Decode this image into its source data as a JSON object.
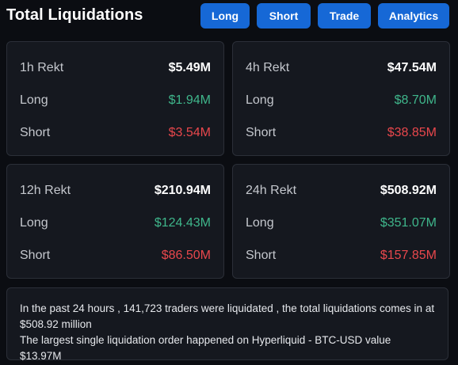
{
  "header": {
    "title": "Total Liquidations",
    "tabs": [
      "Long",
      "Short",
      "Trade",
      "Analytics"
    ]
  },
  "cards": [
    {
      "period": "1h Rekt",
      "total": "$5.49M",
      "long_label": "Long",
      "long": "$1.94M",
      "short_label": "Short",
      "short": "$3.54M"
    },
    {
      "period": "4h Rekt",
      "total": "$47.54M",
      "long_label": "Long",
      "long": "$8.70M",
      "short_label": "Short",
      "short": "$38.85M"
    },
    {
      "period": "12h Rekt",
      "total": "$210.94M",
      "long_label": "Long",
      "long": "$124.43M",
      "short_label": "Short",
      "short": "$86.50M"
    },
    {
      "period": "24h Rekt",
      "total": "$508.92M",
      "long_label": "Long",
      "long": "$351.07M",
      "short_label": "Short",
      "short": "$157.85M"
    }
  ],
  "summary": {
    "line1": "In the past 24 hours , 141,723 traders were liquidated , the total liquidations comes in at $508.92 million",
    "line2": "The largest single liquidation order happened on Hyperliquid - BTC-USD value $13.97M"
  },
  "colors": {
    "accent": "#1668d6",
    "long": "#3fb68b",
    "short": "#e8474c",
    "card_bg": "#15181f",
    "page_bg": "#0b0d12"
  }
}
